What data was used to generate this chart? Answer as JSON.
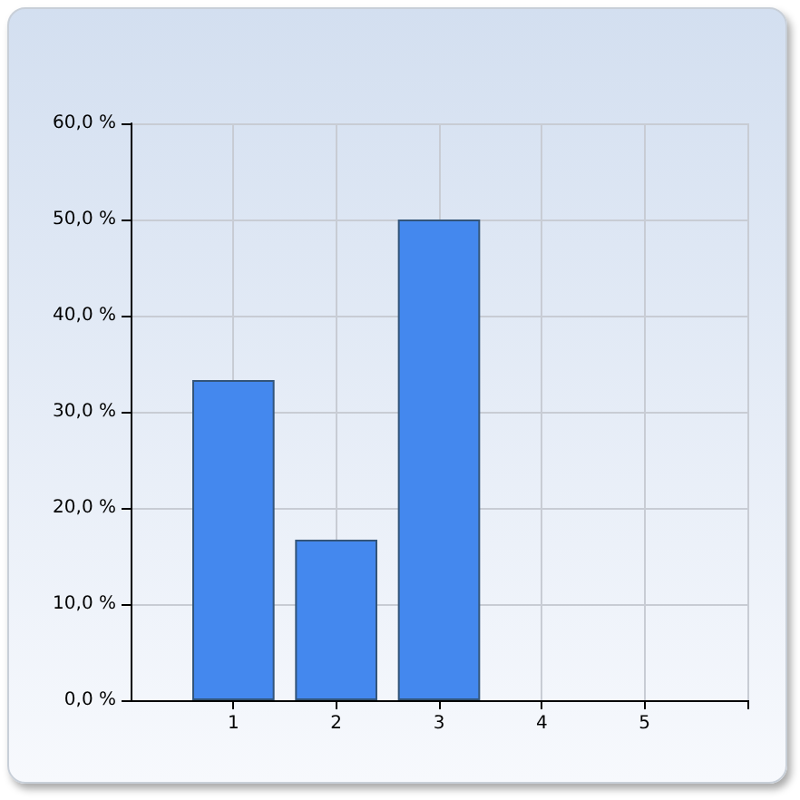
{
  "chart_data": {
    "type": "bar",
    "categories": [
      "1",
      "2",
      "3",
      "4",
      "5"
    ],
    "values": [
      33.3,
      16.7,
      50,
      0,
      0
    ],
    "color": "#4488ee",
    "ylim": [
      0,
      60
    ],
    "yticks": [
      {
        "value": 0,
        "label": "0,0 %"
      },
      {
        "value": 10,
        "label": "10,0 %"
      },
      {
        "value": 20,
        "label": "20,0 %"
      },
      {
        "value": 30,
        "label": "30,0 %"
      },
      {
        "value": 40,
        "label": "40,0 %"
      },
      {
        "value": 50,
        "label": "50,0 %"
      },
      {
        "value": 60,
        "label": "60,0 %"
      }
    ],
    "grid": true
  }
}
